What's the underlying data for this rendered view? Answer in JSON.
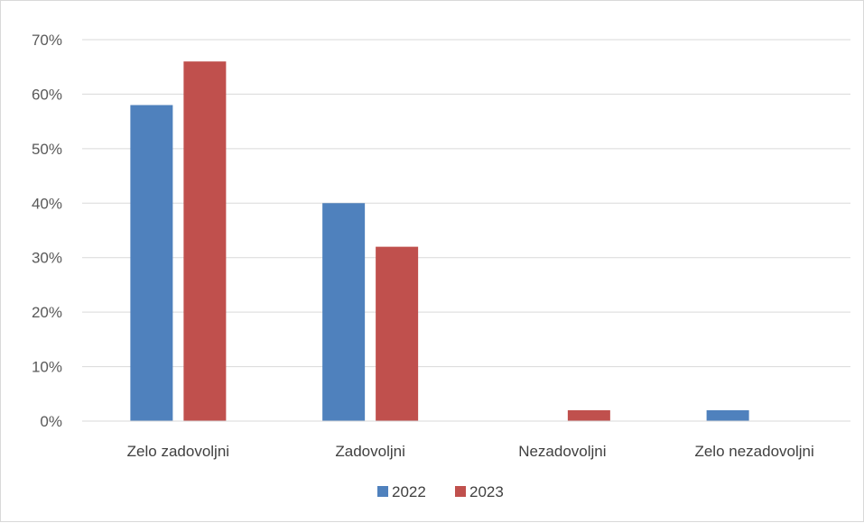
{
  "chart_data": {
    "type": "bar",
    "categories": [
      "Zelo zadovoljni",
      "Zadovoljni",
      "Nezadovoljni",
      "Zelo nezadovoljni"
    ],
    "series": [
      {
        "name": "2022",
        "values": [
          58,
          40,
          0,
          2
        ],
        "color": "#4f81bd"
      },
      {
        "name": "2023",
        "values": [
          66,
          32,
          2,
          0
        ],
        "color": "#c0504d"
      }
    ],
    "y_ticks": [
      "0%",
      "10%",
      "20%",
      "30%",
      "40%",
      "50%",
      "60%",
      "70%"
    ],
    "ylim": [
      0,
      70
    ],
    "y_unit": "%",
    "grid": true,
    "legend": "bottom"
  }
}
